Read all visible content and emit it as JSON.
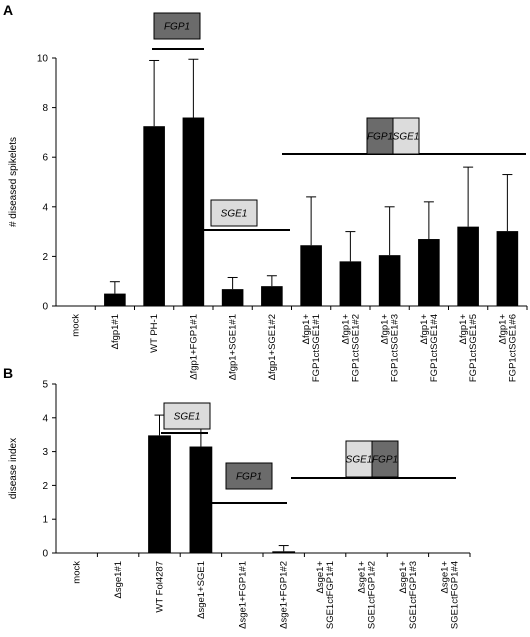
{
  "chart_data": [
    {
      "panel": "A",
      "type": "bar",
      "ylabel": "# diseased spikelets",
      "ylim": [
        0,
        10
      ],
      "yticks": [
        "0",
        "2",
        "4",
        "6",
        "8",
        "10"
      ],
      "categories": [
        [
          "mock"
        ],
        [
          "Δfgp1#1"
        ],
        [
          "WT PH-1"
        ],
        [
          "Δfgp1+FGP1#1"
        ],
        [
          "Δfgp1+SGE1#1"
        ],
        [
          "Δfgp1+SGE1#2"
        ],
        [
          "Δfgp1+",
          "FGP1ctSGE1#1"
        ],
        [
          "Δfgp1+",
          "FGP1ctSGE1#2"
        ],
        [
          "Δfgp1+",
          "FGP1ctSGE1#3"
        ],
        [
          "Δfgp1+",
          "FGP1ctSGE1#4"
        ],
        [
          "Δfgp1+",
          "FGP1ctSGE1#5"
        ],
        [
          "Δfgp1+",
          "FGP1ctSGE1#6"
        ]
      ],
      "values": [
        0,
        0.5,
        7.25,
        7.6,
        0.68,
        0.8,
        2.45,
        1.8,
        2.05,
        2.7,
        3.2,
        3.02
      ],
      "errors": [
        0,
        0.48,
        2.65,
        2.35,
        0.47,
        0.42,
        1.95,
        1.2,
        1.95,
        1.5,
        2.4,
        2.28
      ],
      "annotations": [
        {
          "boxes": [
            {
              "label": "FGP1",
              "fill": "#6b6b6b",
              "color": "#000000"
            }
          ],
          "from": 3,
          "to": 3
        },
        {
          "boxes": [
            {
              "label": "SGE1",
              "fill": "#dcdcdc",
              "color": "#000000"
            }
          ],
          "from": 4,
          "to": 5
        },
        {
          "boxes": [
            {
              "label": "FGP1",
              "fill": "#6b6b6b",
              "color": "#000000"
            },
            {
              "label": "SGE1",
              "fill": "#dcdcdc",
              "color": "#000000"
            }
          ],
          "from": 6,
          "to": 11
        }
      ]
    },
    {
      "panel": "B",
      "type": "bar",
      "ylabel": "disease index",
      "ylim": [
        0,
        5
      ],
      "yticks": [
        "0",
        "1",
        "2",
        "3",
        "4",
        "5"
      ],
      "categories": [
        [
          "mock"
        ],
        [
          "Δsge1#1"
        ],
        [
          "WT Fol4287"
        ],
        [
          "Δsge1+SGE1"
        ],
        [
          "Δsge1+FGP1#1"
        ],
        [
          "Δsge1+FGP1#2"
        ],
        [
          "Δsge1+",
          "SGE1ctFGP1#1"
        ],
        [
          "Δsge1+",
          "SGE1ctFGP1#2"
        ],
        [
          "Δsge1+",
          "SGE1ctFGP1#3"
        ],
        [
          "Δsge1+",
          "SGE1ctFGP1#4"
        ]
      ],
      "values": [
        0,
        0,
        3.48,
        3.15,
        0,
        0.05,
        0,
        0,
        0,
        0
      ],
      "errors": [
        0,
        0,
        0.6,
        0.85,
        0,
        0.17,
        0,
        0,
        0,
        0
      ],
      "annotations": [
        {
          "boxes": [
            {
              "label": "SGE1",
              "fill": "#dcdcdc",
              "color": "#000000"
            }
          ],
          "from": 3,
          "to": 3
        },
        {
          "boxes": [
            {
              "label": "FGP1",
              "fill": "#6b6b6b",
              "color": "#000000"
            }
          ],
          "from": 4,
          "to": 5
        },
        {
          "boxes": [
            {
              "label": "SGE1",
              "fill": "#dcdcdc",
              "color": "#000000"
            },
            {
              "label": "FGP1",
              "fill": "#6b6b6b",
              "color": "#000000"
            }
          ],
          "from": 6,
          "to": 9
        }
      ]
    }
  ],
  "colors": {
    "bar": "#000000",
    "axis": "#000000"
  }
}
